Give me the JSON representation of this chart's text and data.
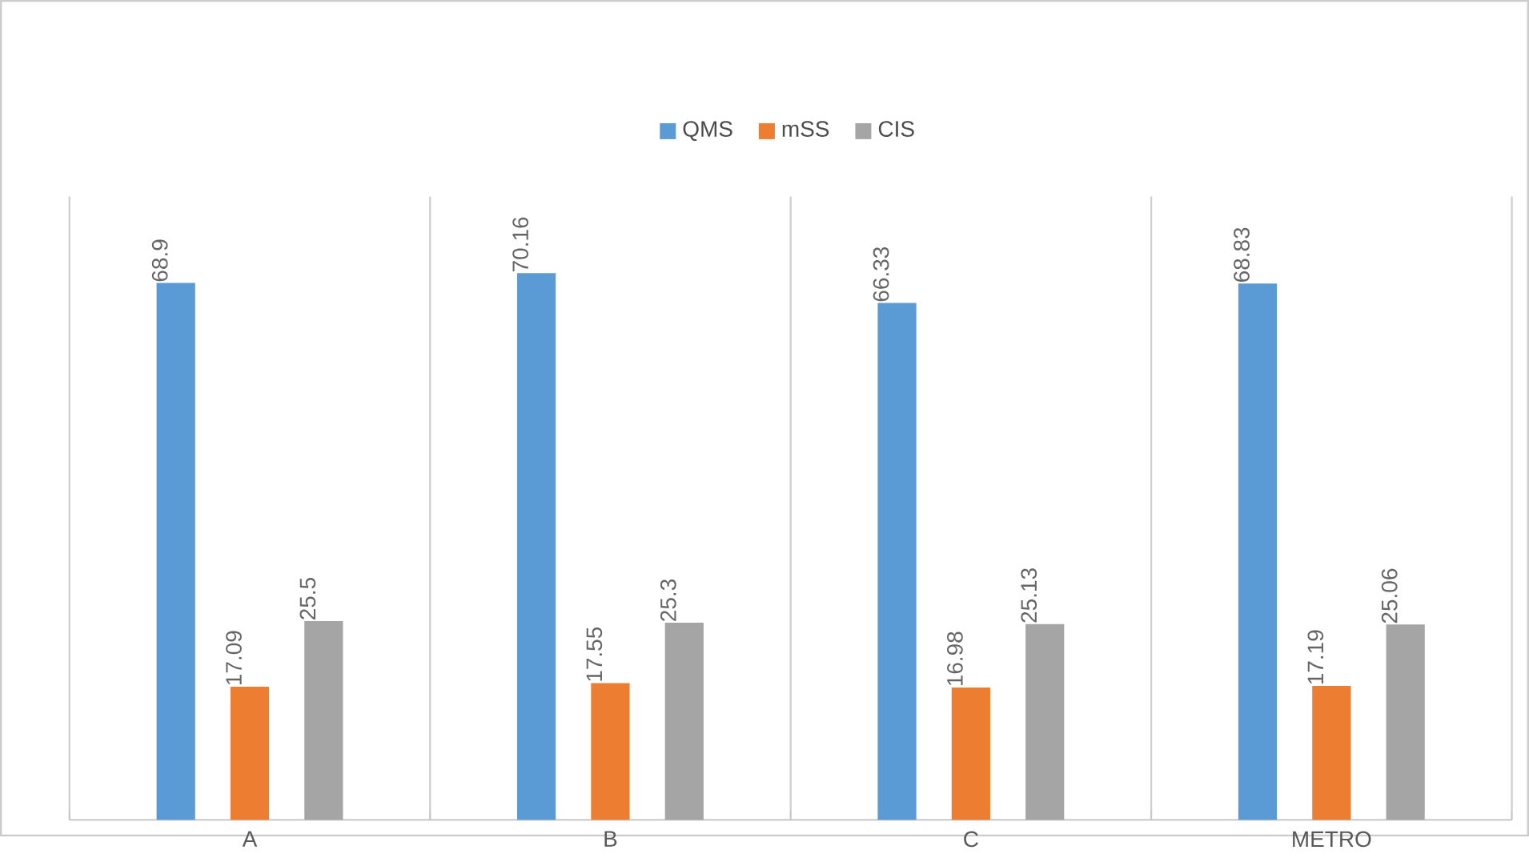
{
  "chart_data": {
    "type": "bar",
    "categories": [
      "A",
      "B",
      "C",
      "METRO"
    ],
    "series": [
      {
        "name": "QMS",
        "color": "#5b9bd5",
        "values": [
          68.9,
          70.16,
          66.33,
          68.83
        ]
      },
      {
        "name": "mSS",
        "color": "#ed7d31",
        "values": [
          17.09,
          17.55,
          16.98,
          17.19
        ]
      },
      {
        "name": "CIS",
        "color": "#a5a5a5",
        "values": [
          25.5,
          25.3,
          25.13,
          25.06
        ]
      }
    ],
    "ylim": [
      0,
      80
    ],
    "data_labels": true,
    "legend": "top",
    "grid": "x",
    "tick_labels": "x"
  }
}
